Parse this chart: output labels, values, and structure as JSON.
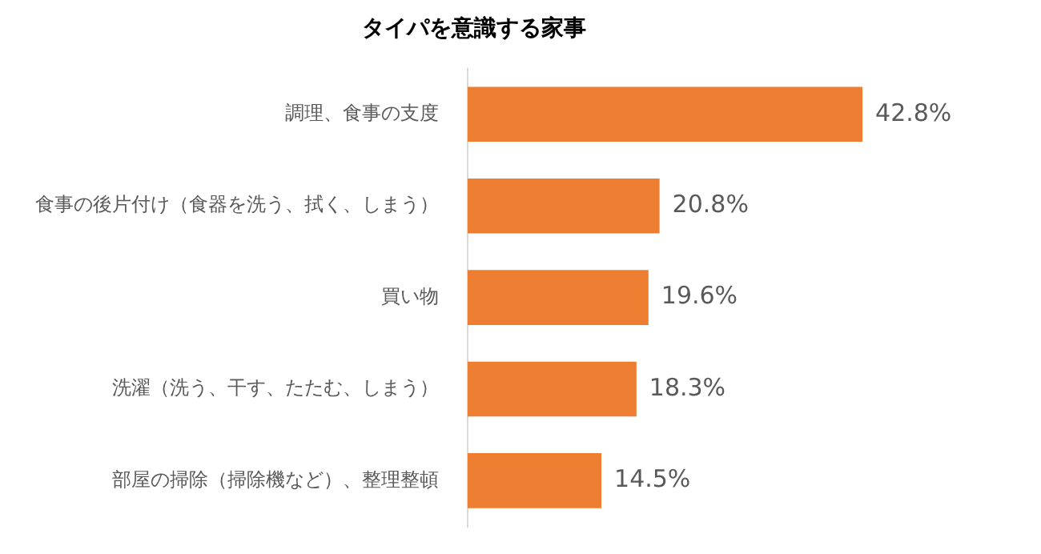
{
  "chart_data": {
    "type": "bar",
    "orientation": "horizontal",
    "title": "タイパを意識する家事",
    "categories": [
      "調理、食事の支度",
      "食事の後片付け（食器を洗う、拭く、しまう）",
      "買い物",
      "洗濯（洗う、干す、たたむ、しまう）",
      "部屋の掃除（掃除機など）、整理整頓"
    ],
    "values": [
      42.8,
      20.8,
      19.6,
      18.3,
      14.5
    ],
    "color": "#ed7d31",
    "value_labels": [
      "42.8%",
      "20.8%",
      "19.6%",
      "18.3%",
      "14.5%"
    ],
    "legend": false
  }
}
